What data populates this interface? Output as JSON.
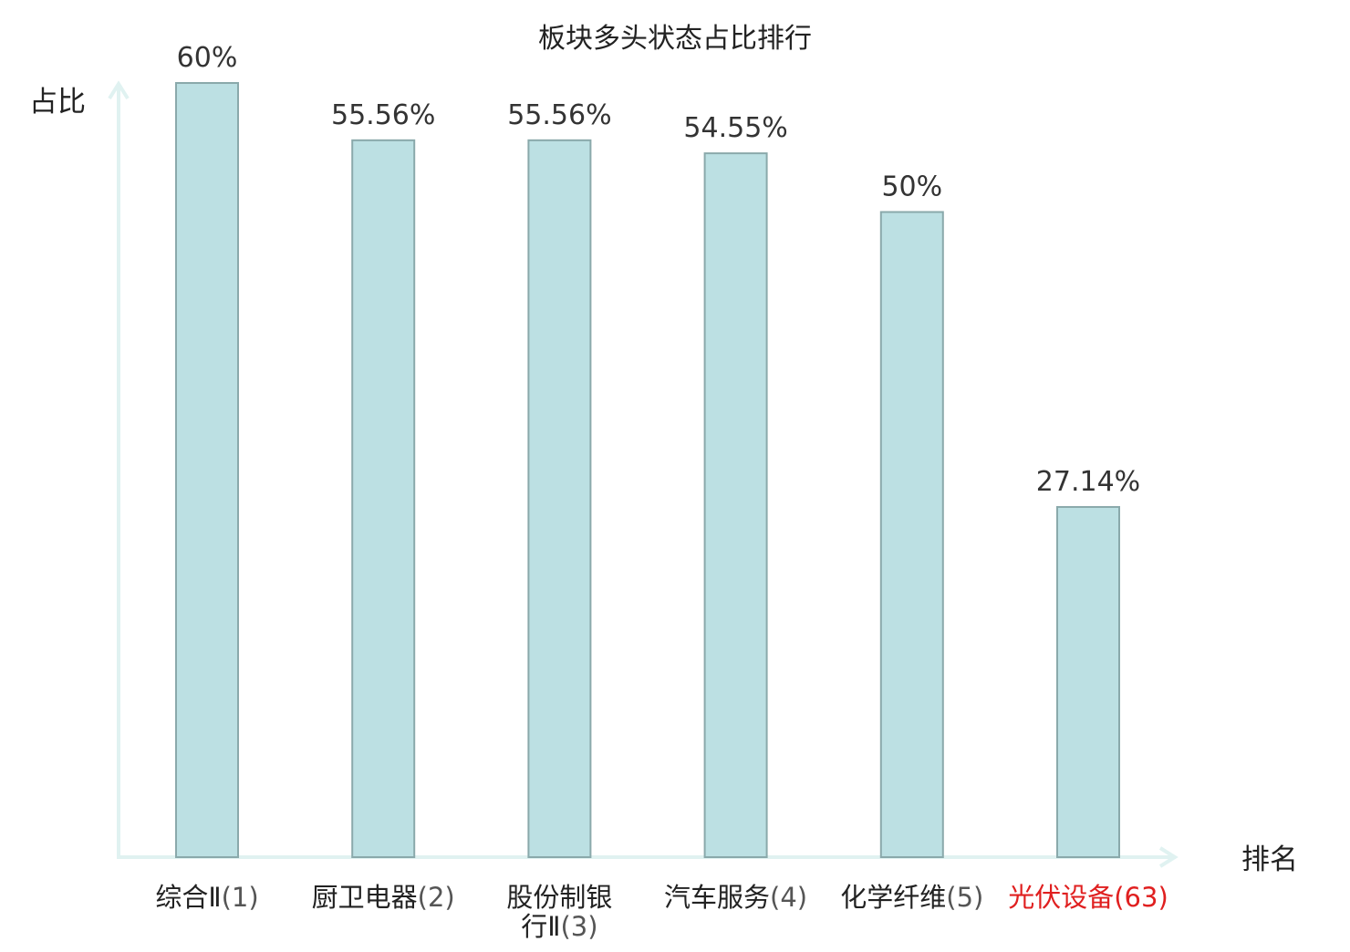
{
  "chart_data": {
    "type": "bar",
    "title": "板块多头状态占比排行",
    "ylabel": "占比",
    "xlabel": "排名",
    "ylim": [
      0,
      60
    ],
    "grid": false,
    "categories": [
      "综合Ⅱ(1)",
      "厨卫电器(2)",
      "股份制银行Ⅱ(3)",
      "汽车服务(4)",
      "化学纤维(5)",
      "光伏设备(63)"
    ],
    "values": [
      60,
      55.56,
      55.56,
      54.55,
      50,
      27.14
    ],
    "value_labels": [
      "60%",
      "55.56%",
      "55.56%",
      "54.55%",
      "50%",
      "27.14%"
    ],
    "highlighted_category": "光伏设备(63)"
  },
  "colors": {
    "bar_fill": "#bce0e3",
    "bar_stroke": "#8aa9ab",
    "axis": "#e0f2f1",
    "text": "#222222",
    "value_text": "#333333",
    "highlight": "#e02020"
  }
}
